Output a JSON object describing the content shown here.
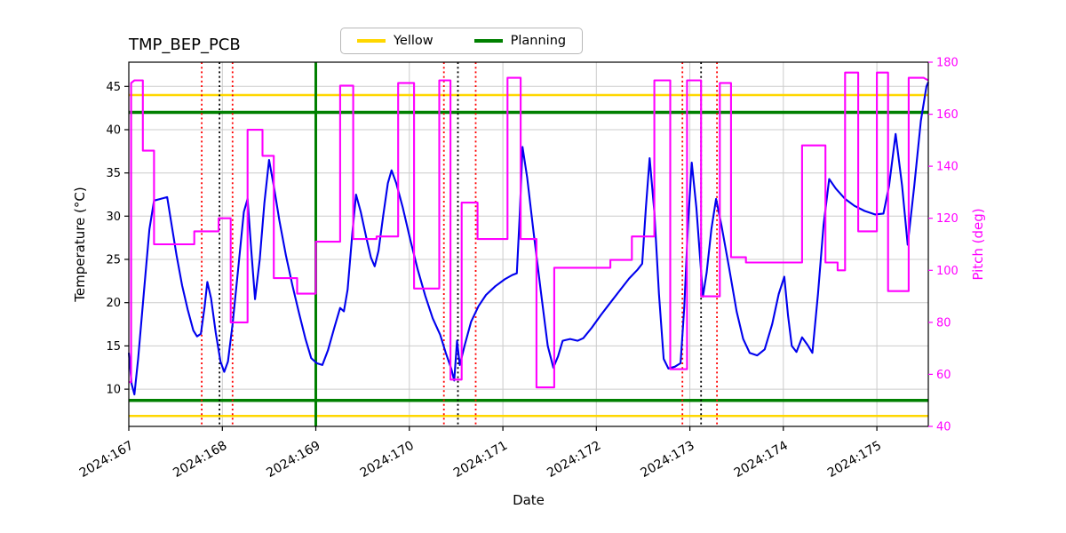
{
  "colors": {
    "temperature_series": "#0000ee",
    "pitch_series": "#ff00ff",
    "yellow_limit": "#ffd700",
    "planning": "#008000",
    "red_event": "#ff0000",
    "black_event": "#000000",
    "grid": "#cccccc",
    "axis": "#000000",
    "right_axis_text": "#ff00ff"
  },
  "chart_data": {
    "type": "line",
    "title": "TMP_BEP_PCB",
    "xlabel": "Date",
    "ylabel_left": "Temperature (°C)",
    "ylabel_right": "Pitch (deg)",
    "xlim": [
      167.0,
      175.55
    ],
    "ylim_left": [
      5.7,
      47.8
    ],
    "ylim_right": [
      40,
      180
    ],
    "grid": true,
    "legend_position": "upper center",
    "x_ticks": [
      {
        "value": 167,
        "label": "2024:167"
      },
      {
        "value": 168,
        "label": "2024:168"
      },
      {
        "value": 169,
        "label": "2024:169"
      },
      {
        "value": 170,
        "label": "2024:170"
      },
      {
        "value": 171,
        "label": "2024:171"
      },
      {
        "value": 172,
        "label": "2024:172"
      },
      {
        "value": 173,
        "label": "2024:173"
      },
      {
        "value": 174,
        "label": "2024:174"
      },
      {
        "value": 175,
        "label": "2024:175"
      }
    ],
    "y_ticks_left": [
      10,
      15,
      20,
      25,
      30,
      35,
      40,
      45
    ],
    "y_ticks_right": [
      40,
      60,
      80,
      100,
      120,
      140,
      160,
      180
    ],
    "legend": [
      {
        "label": "Yellow",
        "color": "#ffd700"
      },
      {
        "label": "Planning",
        "color": "#008000"
      }
    ],
    "hlines": {
      "yellow": [
        44.0,
        6.9
      ],
      "green": [
        42.0,
        8.7
      ]
    },
    "vlines": {
      "green_solid": [
        169.0
      ],
      "red_dotted": [
        167.78,
        168.11,
        170.37,
        170.71,
        172.92,
        173.29
      ],
      "black_dotted": [
        167.97,
        170.52,
        173.12
      ]
    },
    "series": [
      {
        "name": "temperature",
        "axis": "left",
        "color": "#0000ee",
        "points": [
          [
            167.0,
            14.2
          ],
          [
            167.03,
            10.6
          ],
          [
            167.06,
            9.4
          ],
          [
            167.1,
            13.5
          ],
          [
            167.16,
            21.0
          ],
          [
            167.22,
            28.5
          ],
          [
            167.27,
            31.8
          ],
          [
            167.34,
            32.0
          ],
          [
            167.41,
            32.2
          ],
          [
            167.45,
            29.5
          ],
          [
            167.51,
            25.5
          ],
          [
            167.57,
            22.0
          ],
          [
            167.63,
            19.2
          ],
          [
            167.69,
            16.8
          ],
          [
            167.73,
            16.1
          ],
          [
            167.77,
            16.4
          ],
          [
            167.81,
            19.5
          ],
          [
            167.84,
            22.4
          ],
          [
            167.88,
            20.5
          ],
          [
            167.93,
            16.5
          ],
          [
            167.98,
            13.2
          ],
          [
            168.02,
            12.0
          ],
          [
            168.06,
            13.2
          ],
          [
            168.11,
            17.5
          ],
          [
            168.17,
            24.0
          ],
          [
            168.23,
            30.5
          ],
          [
            168.27,
            32.0
          ],
          [
            168.31,
            26.0
          ],
          [
            168.35,
            20.4
          ],
          [
            168.4,
            25.0
          ],
          [
            168.45,
            31.5
          ],
          [
            168.5,
            36.5
          ],
          [
            168.55,
            33.5
          ],
          [
            168.61,
            29.5
          ],
          [
            168.68,
            25.5
          ],
          [
            168.75,
            22.0
          ],
          [
            168.82,
            18.8
          ],
          [
            168.89,
            15.8
          ],
          [
            168.95,
            13.6
          ],
          [
            169.01,
            13.0
          ],
          [
            169.07,
            12.8
          ],
          [
            169.13,
            14.5
          ],
          [
            169.2,
            17.2
          ],
          [
            169.26,
            19.4
          ],
          [
            169.3,
            19.0
          ],
          [
            169.34,
            21.5
          ],
          [
            169.39,
            28.0
          ],
          [
            169.43,
            32.5
          ],
          [
            169.48,
            30.5
          ],
          [
            169.54,
            27.5
          ],
          [
            169.59,
            25.2
          ],
          [
            169.63,
            24.2
          ],
          [
            169.67,
            26.0
          ],
          [
            169.72,
            30.0
          ],
          [
            169.77,
            33.8
          ],
          [
            169.81,
            35.3
          ],
          [
            169.86,
            33.8
          ],
          [
            169.93,
            31.0
          ],
          [
            170.01,
            27.3
          ],
          [
            170.09,
            23.8
          ],
          [
            170.17,
            20.8
          ],
          [
            170.25,
            18.2
          ],
          [
            170.33,
            16.3
          ],
          [
            170.39,
            14.2
          ],
          [
            170.45,
            12.3
          ],
          [
            170.48,
            11.0
          ],
          [
            170.51,
            15.6
          ],
          [
            170.54,
            12.8
          ],
          [
            170.59,
            15.0
          ],
          [
            170.66,
            17.8
          ],
          [
            170.74,
            19.6
          ],
          [
            170.82,
            20.9
          ],
          [
            170.92,
            21.9
          ],
          [
            171.02,
            22.7
          ],
          [
            171.1,
            23.2
          ],
          [
            171.15,
            23.4
          ],
          [
            171.18,
            30.0
          ],
          [
            171.21,
            38.0
          ],
          [
            171.26,
            34.5
          ],
          [
            171.33,
            28.0
          ],
          [
            171.41,
            21.0
          ],
          [
            171.48,
            15.0
          ],
          [
            171.54,
            12.5
          ],
          [
            171.59,
            13.8
          ],
          [
            171.64,
            15.6
          ],
          [
            171.72,
            15.8
          ],
          [
            171.8,
            15.6
          ],
          [
            171.86,
            15.9
          ],
          [
            171.95,
            17.1
          ],
          [
            172.05,
            18.6
          ],
          [
            172.15,
            20.0
          ],
          [
            172.25,
            21.4
          ],
          [
            172.35,
            22.8
          ],
          [
            172.44,
            23.8
          ],
          [
            172.49,
            24.5
          ],
          [
            172.53,
            31.0
          ],
          [
            172.57,
            36.7
          ],
          [
            172.62,
            30.5
          ],
          [
            172.67,
            21.0
          ],
          [
            172.72,
            13.5
          ],
          [
            172.77,
            12.4
          ],
          [
            172.84,
            12.6
          ],
          [
            172.9,
            13.0
          ],
          [
            172.94,
            19.5
          ],
          [
            172.98,
            29.0
          ],
          [
            173.02,
            36.2
          ],
          [
            173.07,
            31.0
          ],
          [
            173.11,
            25.0
          ],
          [
            173.14,
            20.7
          ],
          [
            173.18,
            23.5
          ],
          [
            173.23,
            28.5
          ],
          [
            173.28,
            32.0
          ],
          [
            173.34,
            28.8
          ],
          [
            173.42,
            24.0
          ],
          [
            173.5,
            19.0
          ],
          [
            173.57,
            15.8
          ],
          [
            173.64,
            14.2
          ],
          [
            173.72,
            13.9
          ],
          [
            173.8,
            14.6
          ],
          [
            173.88,
            17.5
          ],
          [
            173.95,
            21.0
          ],
          [
            174.01,
            23.0
          ],
          [
            174.05,
            18.5
          ],
          [
            174.09,
            15.0
          ],
          [
            174.14,
            14.3
          ],
          [
            174.2,
            16.0
          ],
          [
            174.26,
            15.1
          ],
          [
            174.31,
            14.2
          ],
          [
            174.37,
            21.0
          ],
          [
            174.43,
            29.0
          ],
          [
            174.49,
            34.3
          ],
          [
            174.56,
            33.2
          ],
          [
            174.66,
            32.0
          ],
          [
            174.76,
            31.2
          ],
          [
            174.87,
            30.6
          ],
          [
            174.98,
            30.2
          ],
          [
            175.07,
            30.3
          ],
          [
            175.13,
            33.5
          ],
          [
            175.2,
            39.5
          ],
          [
            175.27,
            33.5
          ],
          [
            175.33,
            26.7
          ],
          [
            175.4,
            33.5
          ],
          [
            175.47,
            41.0
          ],
          [
            175.53,
            45.0
          ],
          [
            175.55,
            45.5
          ]
        ]
      },
      {
        "name": "pitch",
        "axis": "right",
        "color": "#ff00ff",
        "points": [
          [
            167.0,
            57
          ],
          [
            167.025,
            57
          ],
          [
            167.025,
            172
          ],
          [
            167.06,
            173
          ],
          [
            167.15,
            173
          ],
          [
            167.15,
            146
          ],
          [
            167.27,
            146
          ],
          [
            167.27,
            110
          ],
          [
            167.7,
            110
          ],
          [
            167.7,
            115
          ],
          [
            167.96,
            115
          ],
          [
            167.96,
            120
          ],
          [
            168.09,
            120
          ],
          [
            168.09,
            80
          ],
          [
            168.27,
            80
          ],
          [
            168.27,
            154
          ],
          [
            168.43,
            154
          ],
          [
            168.43,
            144
          ],
          [
            168.55,
            144
          ],
          [
            168.55,
            97
          ],
          [
            168.8,
            97
          ],
          [
            168.8,
            91
          ],
          [
            169.0,
            91
          ],
          [
            169.0,
            111
          ],
          [
            169.26,
            111
          ],
          [
            169.26,
            171
          ],
          [
            169.4,
            171
          ],
          [
            169.4,
            112
          ],
          [
            169.65,
            112
          ],
          [
            169.65,
            113
          ],
          [
            169.88,
            113
          ],
          [
            169.88,
            172
          ],
          [
            170.05,
            172
          ],
          [
            170.05,
            93
          ],
          [
            170.32,
            93
          ],
          [
            170.32,
            173
          ],
          [
            170.44,
            173
          ],
          [
            170.44,
            58
          ],
          [
            170.56,
            58
          ],
          [
            170.56,
            126
          ],
          [
            170.73,
            126
          ],
          [
            170.73,
            112
          ],
          [
            171.05,
            112
          ],
          [
            171.05,
            174
          ],
          [
            171.19,
            174
          ],
          [
            171.19,
            112
          ],
          [
            171.36,
            112
          ],
          [
            171.36,
            55
          ],
          [
            171.55,
            55
          ],
          [
            171.55,
            101
          ],
          [
            172.15,
            101
          ],
          [
            172.15,
            104
          ],
          [
            172.38,
            104
          ],
          [
            172.38,
            113
          ],
          [
            172.62,
            113
          ],
          [
            172.62,
            173
          ],
          [
            172.79,
            173
          ],
          [
            172.79,
            62
          ],
          [
            172.97,
            62
          ],
          [
            172.97,
            173
          ],
          [
            173.12,
            173
          ],
          [
            173.12,
            90
          ],
          [
            173.32,
            90
          ],
          [
            173.32,
            172
          ],
          [
            173.44,
            172
          ],
          [
            173.44,
            105
          ],
          [
            173.6,
            105
          ],
          [
            173.6,
            103
          ],
          [
            174.2,
            103
          ],
          [
            174.2,
            148
          ],
          [
            174.45,
            148
          ],
          [
            174.45,
            103
          ],
          [
            174.58,
            103
          ],
          [
            174.58,
            100
          ],
          [
            174.66,
            100
          ],
          [
            174.66,
            176
          ],
          [
            174.8,
            176
          ],
          [
            174.8,
            115
          ],
          [
            175.0,
            115
          ],
          [
            175.0,
            176
          ],
          [
            175.12,
            176
          ],
          [
            175.12,
            92
          ],
          [
            175.34,
            92
          ],
          [
            175.34,
            174
          ],
          [
            175.5,
            174
          ],
          [
            175.55,
            173
          ]
        ]
      }
    ]
  }
}
